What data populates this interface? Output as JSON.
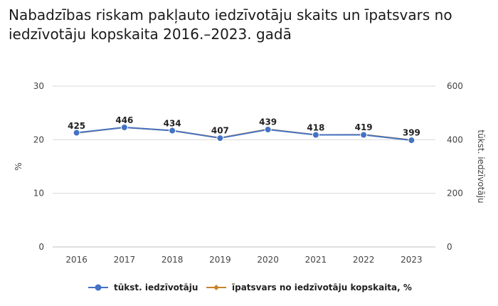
{
  "chart_data": {
    "type": "line",
    "title": "Nabadzības riskam pakļauto iedzīvotāju skaits un īpatsvars no iedzīvotāju kopskaita 2016.–2023. gadā",
    "categories": [
      "2016",
      "2017",
      "2018",
      "2019",
      "2020",
      "2021",
      "2022",
      "2023"
    ],
    "ylabel_left": "%",
    "ylabel_right": "tūkst. iedzīvotāju",
    "yticks_left": [
      "0",
      "10",
      "20",
      "30"
    ],
    "yticks_right": [
      "0",
      "200",
      "400",
      "600"
    ],
    "ylim_left": [
      0,
      30
    ],
    "ylim_right": [
      0,
      600
    ],
    "grid": true,
    "legend_position": "bottom",
    "series": [
      {
        "name": "tūkst. iedzīvotāju",
        "axis": "left",
        "color": "#4472c4",
        "marker": "circle",
        "values": [
          21.3,
          22.3,
          21.7,
          20.3,
          21.9,
          20.9,
          20.9,
          19.9
        ]
      },
      {
        "name": "īpatsvars no iedzīvotāju kopskaita, %",
        "axis": "right",
        "color": "#c8832a",
        "marker": "diamond",
        "values": [
          425,
          446,
          434,
          407,
          439,
          418,
          419,
          399
        ],
        "labels": [
          "425",
          "446",
          "434",
          "407",
          "439",
          "418",
          "419",
          "399"
        ]
      }
    ]
  }
}
